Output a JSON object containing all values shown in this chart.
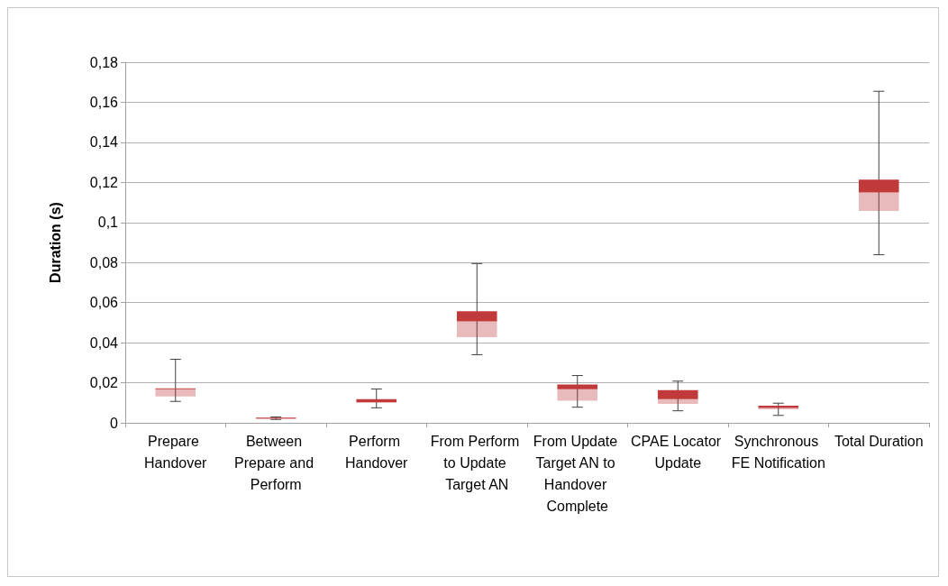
{
  "chart_data": {
    "type": "box",
    "ylabel": "Duration (s)",
    "categories": [
      "Prepare Handover",
      "Between Prepare and Perform",
      "Perform Handover",
      "From Perform to Update Target AN",
      "From Update Target AN to Handover Complete",
      "CPAE Locator Update",
      "Synchronous FE Notification",
      "Total Duration"
    ],
    "series": [
      {
        "color": "#c0393b",
        "boxes": [
          {
            "low": 0.0107,
            "q1": 0.0132,
            "median": 0.0168,
            "q3": 0.0172,
            "high": 0.0317
          },
          {
            "low": 0.0017,
            "q1": 0.0023,
            "median": 0.0024,
            "q3": 0.0026,
            "high": 0.0029
          },
          {
            "low": 0.0075,
            "q1": 0.0101,
            "median": 0.0104,
            "q3": 0.0118,
            "high": 0.0169
          },
          {
            "low": 0.034,
            "q1": 0.0428,
            "median": 0.0506,
            "q3": 0.0557,
            "high": 0.0795
          },
          {
            "low": 0.0078,
            "q1": 0.011,
            "median": 0.0168,
            "q3": 0.0191,
            "high": 0.0236
          },
          {
            "low": 0.006,
            "q1": 0.0095,
            "median": 0.0118,
            "q3": 0.0163,
            "high": 0.0208
          },
          {
            "low": 0.0037,
            "q1": 0.0067,
            "median": 0.0074,
            "q3": 0.0085,
            "high": 0.0098
          },
          {
            "low": 0.0839,
            "q1": 0.1058,
            "median": 0.115,
            "q3": 0.1214,
            "high": 0.1655
          }
        ]
      }
    ],
    "ylim": [
      0,
      0.18
    ],
    "yticks": [
      {
        "value": 0,
        "label": "0"
      },
      {
        "value": 0.02,
        "label": "0,02"
      },
      {
        "value": 0.04,
        "label": "0,04"
      },
      {
        "value": 0.06,
        "label": "0,06"
      },
      {
        "value": 0.08,
        "label": "0,08"
      },
      {
        "value": 0.1,
        "label": "0,1"
      },
      {
        "value": 0.12,
        "label": "0,12"
      },
      {
        "value": 0.14,
        "label": "0,14"
      },
      {
        "value": 0.16,
        "label": "0,16"
      },
      {
        "value": 0.18,
        "label": "0,18"
      }
    ],
    "grid": "y"
  }
}
